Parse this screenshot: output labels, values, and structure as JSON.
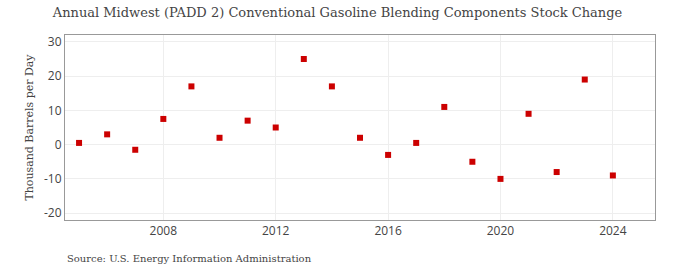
{
  "chart_data": {
    "type": "scatter",
    "title": "Annual Midwest (PADD 2) Conventional Gasoline Blending Components Stock Change",
    "ylabel": "Thousand Barrels per Day",
    "annotations": [
      "Source: U.S. Energy Information Administration"
    ],
    "x": [
      2005,
      2006,
      2007,
      2008,
      2009,
      2010,
      2011,
      2012,
      2013,
      2014,
      2015,
      2016,
      2017,
      2018,
      2019,
      2020,
      2021,
      2022,
      2023,
      2024
    ],
    "values": [
      0.5,
      3.0,
      -1.5,
      7.5,
      17.0,
      2.0,
      7.0,
      5.0,
      25.0,
      17.0,
      2.0,
      -3.0,
      0.5,
      11.0,
      -5.0,
      -10.0,
      9.0,
      -8.0,
      19.0,
      -9.0
    ],
    "color": "#cc0000",
    "marker": "square",
    "xlim": [
      2004.5,
      2025.5
    ],
    "ylim": [
      -22,
      32
    ],
    "xticks": [
      2008,
      2012,
      2016,
      2020,
      2024
    ],
    "yticks": [
      -20,
      -10,
      0,
      10,
      20,
      30
    ],
    "grid": true
  }
}
